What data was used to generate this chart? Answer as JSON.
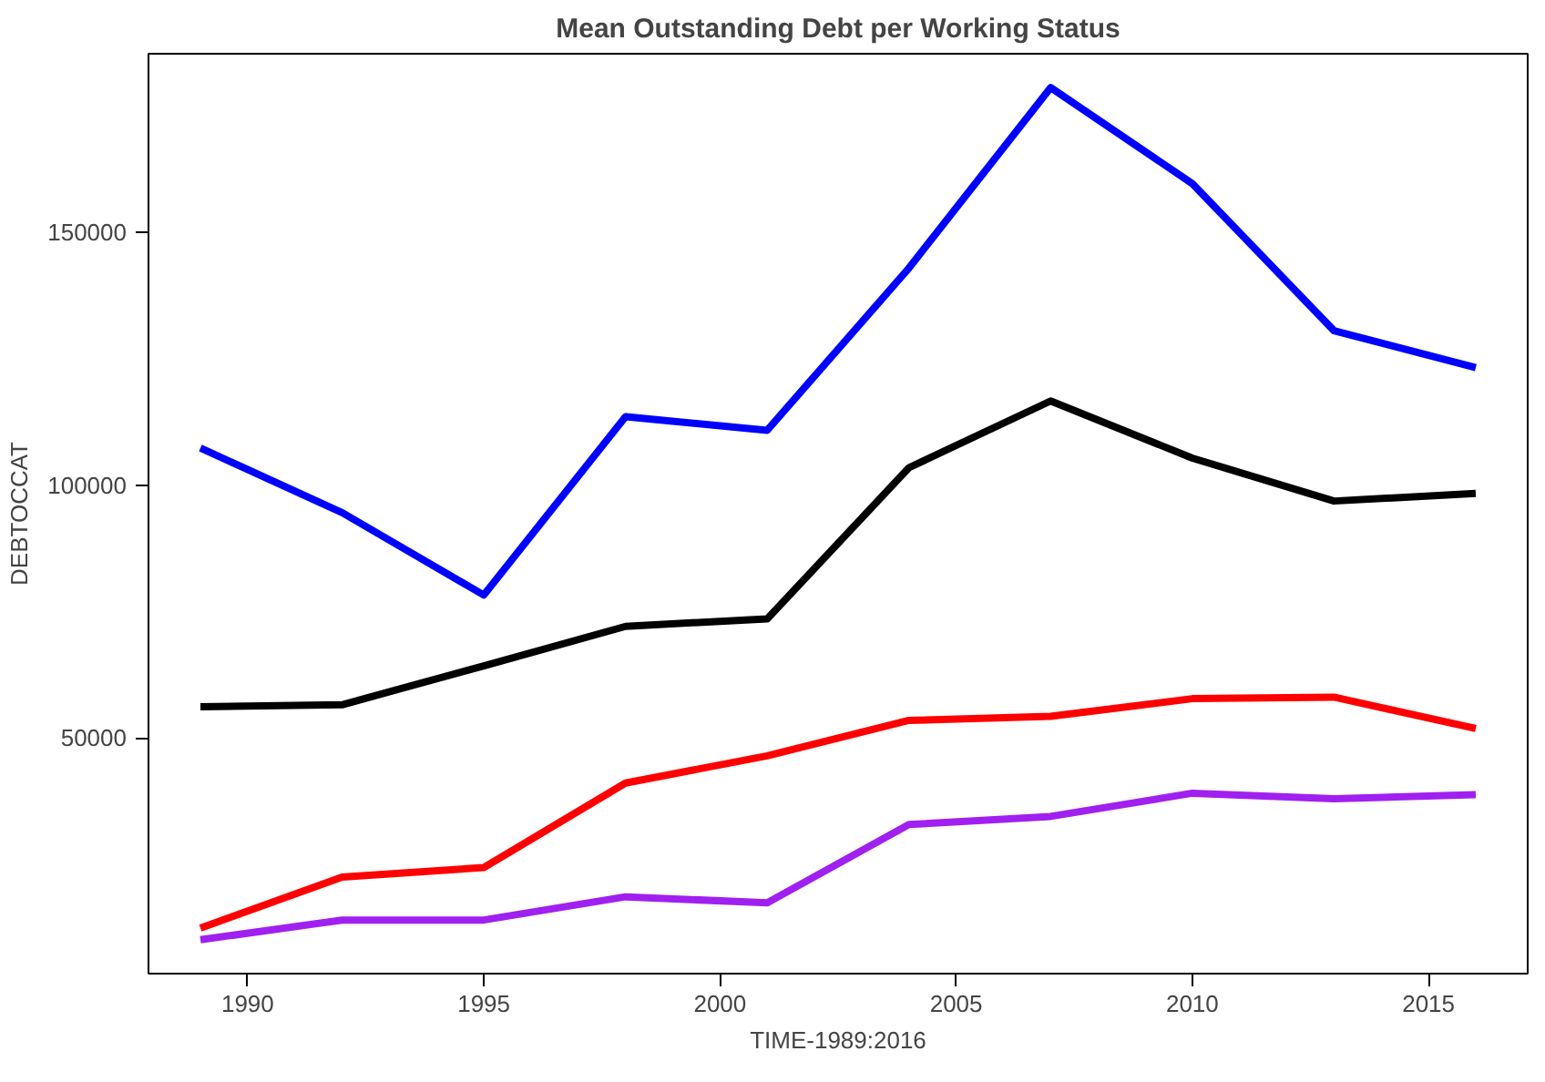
{
  "chart_data": {
    "type": "line",
    "title": "Mean Outstanding Debt per Working Status",
    "xlabel": "TIME-1989:2016",
    "ylabel": "DEBTOCCAT",
    "x": [
      1989,
      1992,
      1995,
      1998,
      2001,
      2004,
      2007,
      2010,
      2013,
      2016
    ],
    "series": [
      {
        "color": "#0000ff",
        "values": [
          107400,
          94600,
          78300,
          113600,
          110900,
          143000,
          178700,
          159700,
          130600,
          123300
        ]
      },
      {
        "color": "#000000",
        "values": [
          56200,
          56600,
          64300,
          72100,
          73600,
          103500,
          116700,
          105400,
          96900,
          98400
        ]
      },
      {
        "color": "#ff0000",
        "values": [
          12400,
          22500,
          24400,
          41100,
          46500,
          53500,
          54300,
          57800,
          58100,
          51900
        ]
      },
      {
        "color": "#a020f0",
        "values": [
          10100,
          14000,
          14000,
          18600,
          17400,
          32900,
          34500,
          39100,
          38000,
          38800
        ]
      }
    ],
    "xlim": [
      1987.9,
      2017.1
    ],
    "ylim": [
      3400,
      185400
    ],
    "xticks": [
      1990,
      1995,
      2000,
      2005,
      2010,
      2015
    ],
    "yticks": [
      50000,
      100000,
      150000
    ],
    "grid": false,
    "line_style": "solid",
    "marker": "none"
  }
}
